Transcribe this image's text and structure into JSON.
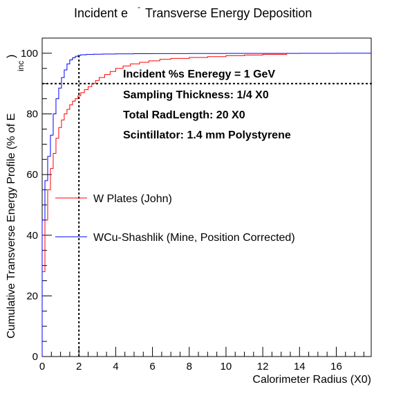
{
  "chart_data": {
    "type": "line",
    "title_main": "Incident e",
    "title_sup": "-",
    "title_rest": "Transverse Energy Deposition",
    "xlabel": "Calorimeter Radius (X0)",
    "ylabel_main": "Cumulative Transverse Energy Profile (% of E",
    "ylabel_sub": "inc",
    "ylabel_close": ")",
    "xlim": [
      0,
      17.9
    ],
    "ylim": [
      0,
      105
    ],
    "x_ticks": [
      "0",
      "2",
      "4",
      "6",
      "8",
      "10",
      "12",
      "14",
      "16"
    ],
    "y_ticks": [
      "0",
      "20",
      "40",
      "60",
      "80",
      "100"
    ],
    "annotations": [
      "Incident %s Eneregy = 1 GeV",
      "Sampling Thickness: 1/4 X0",
      "Total RadLength: 20 X0",
      "Scintillator: 1.4 mm Polystyrene"
    ],
    "reference_lines": {
      "x": 2,
      "y": 90
    },
    "legend": [
      {
        "label": "W Plates (John)",
        "color": "#ff0000"
      },
      {
        "label": "WCu-Shashlik (Mine, Position Corrected)",
        "color": "#0000ff"
      }
    ],
    "series": [
      {
        "color": "#ff0000",
        "x": [
          0,
          0.15,
          0.3,
          0.45,
          0.6,
          0.75,
          0.9,
          1.05,
          1.2,
          1.35,
          1.5,
          1.65,
          1.8,
          1.95,
          2.1,
          2.3,
          2.5,
          2.7,
          2.9,
          3.1,
          3.4,
          3.7,
          4.0,
          4.4,
          4.8,
          5.3,
          5.8,
          6.4,
          7.0,
          8.0,
          9.0,
          10.0,
          11.0,
          12.0,
          13.3
        ],
        "y": [
          28,
          45,
          55,
          62,
          67,
          72,
          75.5,
          78,
          80,
          81.5,
          83,
          84.2,
          85,
          86,
          87,
          88,
          89,
          90,
          91,
          92,
          93,
          94,
          95,
          95.8,
          96.5,
          97,
          97.5,
          98,
          98.3,
          98.6,
          98.9,
          99.2,
          99.4,
          99.6,
          99.8
        ]
      },
      {
        "color": "#0000ff",
        "x": [
          0,
          0.15,
          0.3,
          0.45,
          0.6,
          0.75,
          0.9,
          1.05,
          1.2,
          1.35,
          1.5,
          1.65,
          1.8,
          1.95,
          2.1,
          2.4,
          2.8,
          3.3,
          4.0,
          5.0,
          6.0,
          8.0,
          10.0,
          12.0,
          14.0,
          16.0,
          17.9
        ],
        "y": [
          45,
          58,
          66,
          73,
          80,
          85,
          88.5,
          92,
          94.5,
          96.5,
          97.8,
          98.5,
          99,
          99.3,
          99.5,
          99.6,
          99.7,
          99.75,
          99.8,
          99.85,
          99.9,
          99.92,
          99.94,
          99.96,
          99.98,
          100,
          100
        ]
      }
    ]
  }
}
